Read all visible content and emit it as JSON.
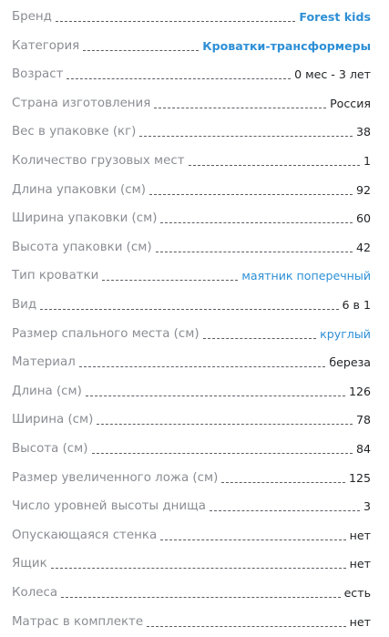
{
  "specs": [
    {
      "label": "Бренд",
      "value": "Forest kids",
      "link": true,
      "bold": true
    },
    {
      "label": "Категория",
      "value": "Кроватки-трансформеры",
      "link": true,
      "bold": true
    },
    {
      "label": "Возраст",
      "value": "0 мес - 3 лет"
    },
    {
      "label": "Страна изготовления",
      "value": "Россия"
    },
    {
      "label": "Вес в упаковке (кг)",
      "value": "38"
    },
    {
      "label": "Количество грузовых мест",
      "value": "1"
    },
    {
      "label": "Длина упаковки (см)",
      "value": "92"
    },
    {
      "label": "Ширина упаковки (см)",
      "value": "60"
    },
    {
      "label": "Высота упаковки (см)",
      "value": "42"
    },
    {
      "label": "Тип кроватки",
      "value": "маятник поперечный",
      "link": true
    },
    {
      "label": "Вид",
      "value": "6 в 1"
    },
    {
      "label": "Размер спального места (см)",
      "value": "круглый",
      "link": true
    },
    {
      "label": "Материал",
      "value": "береза"
    },
    {
      "label": "Длина (см)",
      "value": "126"
    },
    {
      "label": "Ширина (см)",
      "value": "78"
    },
    {
      "label": "Высота (см)",
      "value": "84"
    },
    {
      "label": "Размер увеличенного ложа (см)",
      "value": "125"
    },
    {
      "label": "Число уровней высоты днища",
      "value": "3"
    },
    {
      "label": "Опускающаяся стенка",
      "value": "нет"
    },
    {
      "label": "Ящик",
      "value": "нет"
    },
    {
      "label": "Колеса",
      "value": "есть"
    },
    {
      "label": "Матрас в комплекте",
      "value": "нет"
    }
  ],
  "colors": {
    "label": "#8a8d93",
    "value": "#1f2124",
    "link": "#2d8fd6",
    "leader": "#5a5d63"
  }
}
